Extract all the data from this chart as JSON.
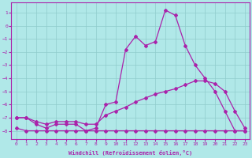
{
  "xlabel": "Windchill (Refroidissement éolien,°C)",
  "bg_color": "#b0e8e8",
  "grid_color": "#90cccc",
  "line_color": "#aa22aa",
  "xlim": [
    -0.5,
    23.5
  ],
  "ylim": [
    -8.6,
    1.8
  ],
  "xticks": [
    0,
    1,
    2,
    3,
    4,
    5,
    6,
    7,
    8,
    9,
    10,
    11,
    12,
    13,
    14,
    15,
    16,
    17,
    18,
    19,
    20,
    21,
    22,
    23
  ],
  "yticks": [
    1,
    0,
    -1,
    -2,
    -3,
    -4,
    -5,
    -6,
    -7,
    -8
  ],
  "line1_x": [
    0,
    1,
    2,
    3,
    4,
    5,
    6,
    7,
    8,
    9,
    10,
    11,
    12,
    13,
    14,
    15,
    16,
    17,
    18,
    19,
    20,
    21,
    22,
    23
  ],
  "line1_y": [
    -7.8,
    -8.0,
    -8.0,
    -8.0,
    -8.0,
    -8.0,
    -8.0,
    -8.0,
    -8.0,
    -8.0,
    -8.0,
    -8.0,
    -8.0,
    -8.0,
    -8.0,
    -8.0,
    -8.0,
    -8.0,
    -8.0,
    -8.0,
    -8.0,
    -8.0,
    -8.0,
    -8.0
  ],
  "line2_x": [
    0,
    1,
    2,
    3,
    4,
    5,
    6,
    7,
    8,
    9,
    10,
    11,
    12,
    13,
    14,
    15,
    16,
    17,
    18,
    19,
    20,
    21,
    22,
    23
  ],
  "line2_y": [
    -7.0,
    -7.0,
    -7.3,
    -7.5,
    -7.3,
    -7.3,
    -7.3,
    -7.5,
    -7.5,
    -6.8,
    -6.5,
    -6.2,
    -5.8,
    -5.5,
    -5.2,
    -5.0,
    -4.8,
    -4.5,
    -4.2,
    -4.2,
    -4.4,
    -5.0,
    -6.5,
    -7.8
  ],
  "line3_x": [
    0,
    1,
    2,
    3,
    4,
    5,
    6,
    7,
    8,
    9,
    10,
    11,
    12,
    13,
    14,
    15,
    16,
    17,
    18,
    19,
    20,
    21,
    22,
    23
  ],
  "line3_y": [
    -7.0,
    -7.0,
    -7.5,
    -7.8,
    -7.5,
    -7.5,
    -7.5,
    -8.0,
    -7.8,
    -6.0,
    -5.8,
    -1.8,
    -0.8,
    -1.5,
    -1.2,
    1.2,
    0.8,
    -1.5,
    -3.0,
    -4.0,
    -5.0,
    -6.5,
    -8.0,
    -8.0
  ]
}
